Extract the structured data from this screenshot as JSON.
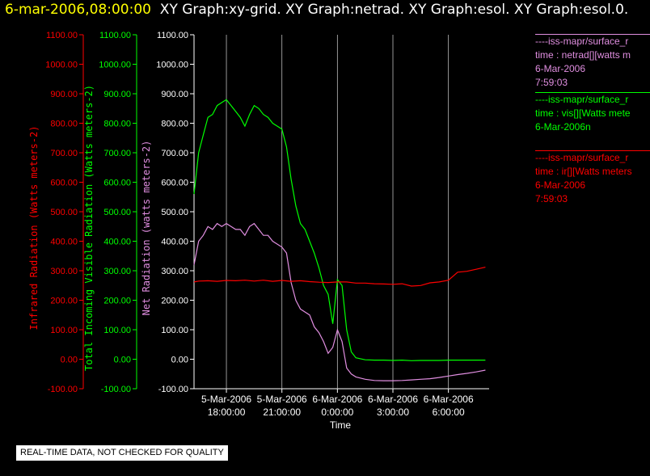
{
  "header": {
    "date": "6-mar-2006,08:00:00",
    "graphs": "XY Graph:xy-grid.  XY Graph:netrad.  XY Graph:esol.  XY Graph:esol.0."
  },
  "legend": [
    {
      "source": "----iss-mapr/surface_r",
      "variable": "time : netrad[][watts m",
      "date": "6-Mar-2006",
      "time": "7:59:03",
      "color": "#e08ee0"
    },
    {
      "source": "----iss-mapr/surface_r",
      "variable": "time : vis[][Watts mete",
      "date": "6-Mar-2006n",
      "time": "",
      "color": "#00ff00"
    },
    {
      "source": "----iss-mapr/surface_r",
      "variable": "time : ir[][Watts meters",
      "date": "6-Mar-2006",
      "time": "7:59:03",
      "color": "#ff0000"
    }
  ],
  "disclaimer": "REAL-TIME DATA, NOT CHECKED FOR QUALITY",
  "chart_data": {
    "type": "line",
    "xlabel": "Time",
    "x_ticks": [
      {
        "date": "5-Mar-2006",
        "time": "18:00:00",
        "hours": 0
      },
      {
        "date": "5-Mar-2006",
        "time": "21:00:00",
        "hours": 3
      },
      {
        "date": "6-Mar-2006",
        "time": "0:00:00",
        "hours": 6
      },
      {
        "date": "6-Mar-2006",
        "time": "3:00:00",
        "hours": 9
      },
      {
        "date": "6-Mar-2006",
        "time": "6:00:00",
        "hours": 12
      }
    ],
    "xlim_hours_from_5mar_18": [
      -1.75,
      14.2
    ],
    "ylim": [
      -100,
      1100
    ],
    "y_ticks": [
      "1100.00",
      "1000.00",
      "900.00",
      "800.00",
      "700.00",
      "600.00",
      "500.00",
      "400.00",
      "300.00",
      "200.00",
      "100.00",
      "0.00",
      "-100.00"
    ],
    "axes": [
      {
        "label": "Infrared Radiation (Watts meters-2)",
        "color": "#ff0000"
      },
      {
        "label": "Total Incoming Visible Radiation (Watts meters-2)",
        "color": "#00ff00"
      },
      {
        "label": "Net Radiation (watts meters-2)",
        "color": "#e08ee0"
      }
    ],
    "series": [
      {
        "name": "vis",
        "color": "#00ff00",
        "x": [
          -1.75,
          -1.5,
          -1.25,
          -1.0,
          -0.75,
          -0.5,
          -0.25,
          0.0,
          0.25,
          0.5,
          0.75,
          1.0,
          1.25,
          1.5,
          1.75,
          2.0,
          2.25,
          2.5,
          2.75,
          3.0,
          3.25,
          3.5,
          3.75,
          4.0,
          4.25,
          4.5,
          4.75,
          5.0,
          5.25,
          5.5,
          5.75,
          6.0,
          6.25,
          6.5,
          6.75,
          7.0,
          7.5,
          8.0,
          8.5,
          9.0,
          9.5,
          10.0,
          10.5,
          11.0,
          11.5,
          12.0,
          12.5,
          13.0,
          13.5,
          14.0
        ],
        "y": [
          560,
          700,
          760,
          820,
          830,
          860,
          870,
          880,
          860,
          840,
          820,
          790,
          830,
          860,
          850,
          830,
          820,
          800,
          790,
          780,
          720,
          610,
          520,
          460,
          440,
          400,
          360,
          310,
          250,
          220,
          120,
          270,
          250,
          100,
          25,
          5,
          -2,
          -3,
          -3,
          -4,
          -3,
          -5,
          -4,
          -4,
          -4,
          -3,
          -3,
          -3,
          -3,
          -3
        ]
      },
      {
        "name": "netrad",
        "color": "#e08ee0",
        "x": [
          -1.75,
          -1.5,
          -1.25,
          -1.0,
          -0.75,
          -0.5,
          -0.25,
          0.0,
          0.25,
          0.5,
          0.75,
          1.0,
          1.25,
          1.5,
          1.75,
          2.0,
          2.25,
          2.5,
          2.75,
          3.0,
          3.25,
          3.5,
          3.75,
          4.0,
          4.25,
          4.5,
          4.75,
          5.0,
          5.25,
          5.5,
          5.75,
          6.0,
          6.25,
          6.5,
          6.75,
          7.0,
          7.5,
          8.0,
          8.5,
          9.0,
          9.5,
          10.0,
          10.5,
          11.0,
          11.5,
          12.0,
          12.5,
          13.0,
          13.5,
          14.0
        ],
        "y": [
          320,
          400,
          420,
          450,
          440,
          460,
          450,
          460,
          450,
          440,
          440,
          420,
          450,
          460,
          440,
          420,
          420,
          400,
          390,
          380,
          360,
          260,
          200,
          170,
          160,
          150,
          110,
          90,
          60,
          20,
          40,
          100,
          60,
          -30,
          -50,
          -60,
          -68,
          -72,
          -73,
          -73,
          -72,
          -70,
          -68,
          -66,
          -62,
          -57,
          -52,
          -48,
          -43,
          -37
        ]
      },
      {
        "name": "ir",
        "color": "#ff0000",
        "x": [
          -1.75,
          -1.5,
          -1.0,
          -0.5,
          0.0,
          0.5,
          1.0,
          1.5,
          2.0,
          2.5,
          3.0,
          3.5,
          4.0,
          4.5,
          5.0,
          5.5,
          6.0,
          6.5,
          7.0,
          7.5,
          8.0,
          8.5,
          9.0,
          9.5,
          10.0,
          10.5,
          11.0,
          11.5,
          12.0,
          12.5,
          13.0,
          13.5,
          14.0
        ],
        "y": [
          262,
          265,
          266,
          264,
          267,
          266,
          268,
          265,
          268,
          264,
          267,
          264,
          266,
          263,
          261,
          260,
          262,
          262,
          258,
          258,
          256,
          255,
          254,
          256,
          248,
          250,
          259,
          262,
          268,
          295,
          298,
          305,
          312
        ]
      }
    ]
  }
}
